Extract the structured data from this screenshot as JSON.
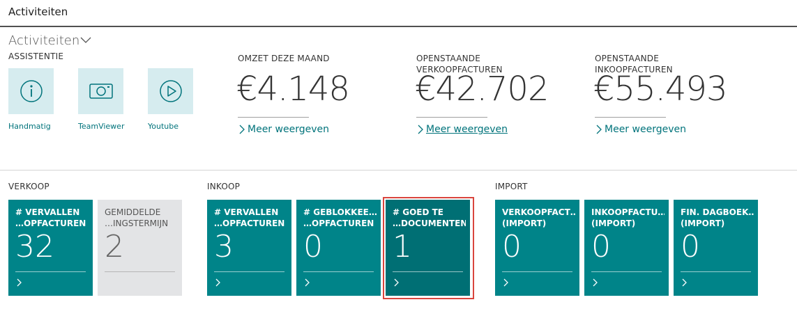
{
  "header": {
    "title": "Activiteiten"
  },
  "section": {
    "title": "Activiteiten"
  },
  "assist": {
    "label": "ASSISTENTIE",
    "items": [
      {
        "label": "Handmatig",
        "icon": "info-icon"
      },
      {
        "label": "TeamViewer",
        "icon": "camera-icon"
      },
      {
        "label": "Youtube",
        "icon": "play-icon"
      }
    ]
  },
  "kpis": [
    {
      "title_line1": "OMZET DEZE MAAND",
      "title_line2": "",
      "value": "€4.148",
      "link": "Meer weergeven"
    },
    {
      "title_line1": "OPENSTAANDE",
      "title_line2": "VERKOOPFACTUREN",
      "value": "€42.702",
      "link": "Meer weergeven"
    },
    {
      "title_line1": "OPENSTAANDE",
      "title_line2": "INKOOPFACTUREN",
      "value": "€55.493",
      "link": "Meer weergeven"
    }
  ],
  "groups": {
    "verkoop": "VERKOOP",
    "inkoop": "INKOOP",
    "import": "IMPORT"
  },
  "cues": [
    {
      "line1": "# VERVALLEN",
      "line2": "…OPFACTUREN",
      "value": "32"
    },
    {
      "line1": "GEMIDDELDE",
      "line2": "…INGSTERMIJN",
      "value": "2"
    },
    {
      "line1": "# VERVALLEN",
      "line2": "…OPFACTUREN",
      "value": "3"
    },
    {
      "line1": "# GEBLOKKEE…",
      "line2": "…OPFACTUREN",
      "value": "0"
    },
    {
      "line1": "# GOED TE",
      "line2": "…DOCUMENTEN",
      "value": "1"
    },
    {
      "line1": "VERKOOPFACT…",
      "line2": "(IMPORT)",
      "value": "0"
    },
    {
      "line1": "INKOOPFACTU…",
      "line2": "(IMPORT)",
      "value": "0"
    },
    {
      "line1": "FIN. DAGBOEK…",
      "line2": "(IMPORT)",
      "value": "0"
    }
  ],
  "colors": {
    "accent": "#008489",
    "accent_dark": "#006f74",
    "tile_light": "#d6ecef",
    "highlight": "#d9453d",
    "link": "#00737b"
  }
}
